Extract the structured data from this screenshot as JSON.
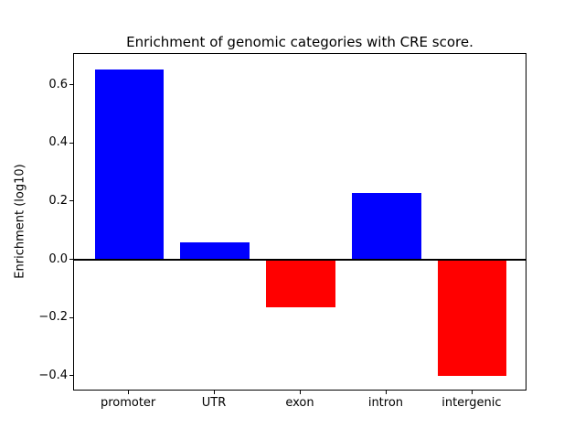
{
  "chart_data": {
    "type": "bar",
    "title": "Enrichment of genomic categories with CRE score.",
    "ylabel": "Enrichment (log10)",
    "xlabel": "",
    "categories": [
      "promoter",
      "UTR",
      "exon",
      "intron",
      "intergenic"
    ],
    "values": [
      0.655,
      0.06,
      -0.165,
      0.23,
      -0.4
    ],
    "positive_color": "#0000ff",
    "negative_color": "#ff0000",
    "yticks": [
      -0.4,
      -0.2,
      0.0,
      0.2,
      0.4,
      0.6
    ],
    "ylim": [
      -0.453,
      0.708
    ],
    "xlim": [
      -0.64,
      4.64
    ],
    "bar_width": 0.8,
    "zero_line": true,
    "grid": false,
    "legend": null
  }
}
